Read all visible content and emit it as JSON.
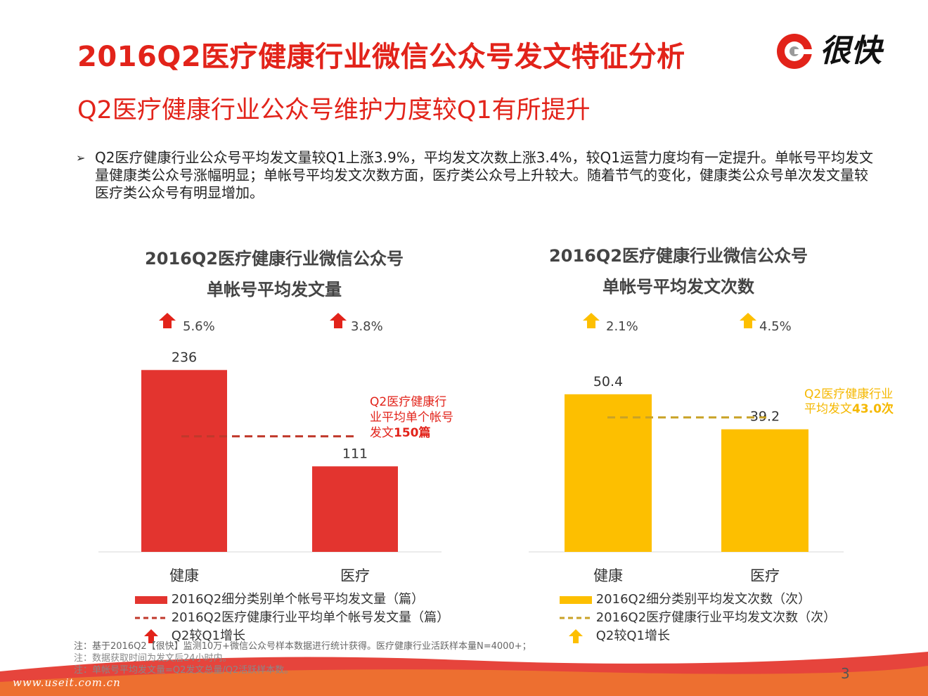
{
  "header": {
    "title": "2016Q2医疗健康行业微信公众号发文特征分析",
    "subtitle": "Q2医疗健康行业公众号维护力度较Q1有所提升",
    "logo_text": "很快"
  },
  "bullet": {
    "mark": "➢",
    "text": "Q2医疗健康行业公众号平均发文量较Q1上涨3.9%，平均发文次数上涨3.4%，较Q1运营力度均有一定提升。单帐号平均发文量健康类公众号涨幅明显；单帐号平均发文次数方面，医疗类公众号上升较大。随着节气的变化，健康类公众号单次发文量较医疗类公众号有明显增加。"
  },
  "colors": {
    "red": "#e3342f",
    "red_dark": "#c0392b",
    "yellow": "#fdbf00",
    "yellow_dark": "#c9a227",
    "yellow_text": "#f5b800",
    "accent": "#e2231a"
  },
  "chart_data": [
    {
      "type": "bar",
      "title_line1": "2016Q2医疗健康行业微信公众号",
      "title_line2": "单帐号平均发文量",
      "categories": [
        "健康",
        "医疗"
      ],
      "values": [
        236,
        111
      ],
      "value_labels": [
        "236",
        "111"
      ],
      "growth": [
        "5.6%",
        "3.8%"
      ],
      "ylim": [
        0,
        260
      ],
      "reference": {
        "value": 150,
        "label_line1": "Q2医疗健康行",
        "label_line2": "业平均单个帐号",
        "label_line3_prefix": "发文",
        "label_line3_bold": "150篇"
      },
      "legend": {
        "bar": "2016Q2细分类别单个帐号平均发文量（篇）",
        "line": "2016Q2医疗健康行业平均单个帐号发文量（篇）",
        "growth": "Q2较Q1增长"
      }
    },
    {
      "type": "bar",
      "title_line1": "2016Q2医疗健康行业微信公众号",
      "title_line2": "单帐号平均发文次数",
      "categories": [
        "健康",
        "医疗"
      ],
      "values": [
        50.4,
        39.2
      ],
      "value_labels": [
        "50.4",
        "39.2"
      ],
      "growth": [
        "2.1%",
        "4.5%"
      ],
      "ylim": [
        0,
        58
      ],
      "reference": {
        "value": 43.0,
        "label_line1": "Q2医疗健康行业",
        "label_line2_prefix": "平均发文",
        "label_line2_bold": "43.0次"
      },
      "legend": {
        "bar": "2016Q2细分类别平均发文次数（次）",
        "line": "2016Q2医疗健康行业平均发文次数（次）",
        "growth": "Q2较Q1增长"
      }
    }
  ],
  "notes": {
    "note1": "注：基于2016Q2【很快】监测10万+微信公众号样本数据进行统计获得。医疗健康行业活跃样本量N=4000+；",
    "note2": "注：数据获取时间为发文后24小时内。",
    "note3": "注：单帐号平均发文量=Q2发文总量/Q2活跃样本数。"
  },
  "footer": {
    "page_number": "3",
    "watermark": "www.useit.com.cn"
  }
}
